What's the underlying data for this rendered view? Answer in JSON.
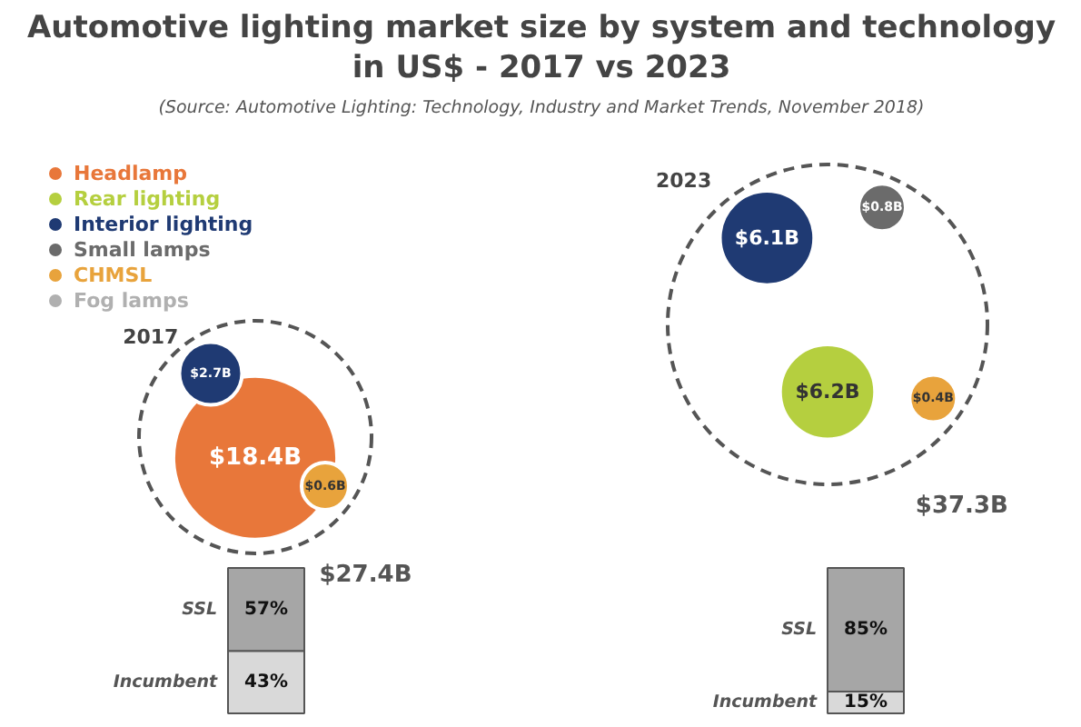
{
  "chart_data": [
    {
      "type": "other",
      "title": "Automotive lighting market size by system and technology in US$ - 2017 vs 2023",
      "annotations": [
        "(Source: Automotive Lighting: Technology, Industry and Market Trends, November 2018)"
      ],
      "categories": [
        "2017",
        "2023"
      ],
      "series": [
        {
          "name": "Headlamp",
          "color": "#e8773a",
          "values": [
            18.4,
            null
          ],
          "value_labels": [
            "$18.4B",
            null
          ]
        },
        {
          "name": "Rear lighting",
          "color": "#b5cf3f",
          "values": [
            null,
            6.2
          ],
          "value_labels": [
            null,
            "$6.2B"
          ]
        },
        {
          "name": "Interior lighting",
          "color": "#1f3a73",
          "values": [
            2.7,
            6.1
          ],
          "value_labels": [
            "$2.7B",
            "$6.1B"
          ]
        },
        {
          "name": "Small lamps",
          "color": "#6b6b6b",
          "values": [
            null,
            0.8
          ],
          "value_labels": [
            null,
            "$0.8B"
          ]
        },
        {
          "name": "CHMSL",
          "color": "#e8a33c",
          "values": [
            0.6,
            0.4
          ],
          "value_labels": [
            "$0.6B",
            "$0.4B"
          ]
        },
        {
          "name": "Fog lamps",
          "color": "#b0b0b0",
          "values": [
            null,
            null
          ]
        }
      ],
      "totals": [
        "$27.4B",
        "$37.3B"
      ],
      "legend": "top left"
    },
    {
      "type": "bar",
      "categories": [
        null,
        null
      ],
      "stacked": true,
      "series": [
        {
          "name": "Incumbent",
          "color": "#d9d9d9",
          "values": [
            43,
            15
          ],
          "value_labels": [
            "43%",
            "15%"
          ]
        },
        {
          "name": "SSL",
          "color": "#a6a6a6",
          "values": [
            57,
            85
          ],
          "value_labels": [
            "57%",
            "85%"
          ]
        }
      ]
    }
  ]
}
